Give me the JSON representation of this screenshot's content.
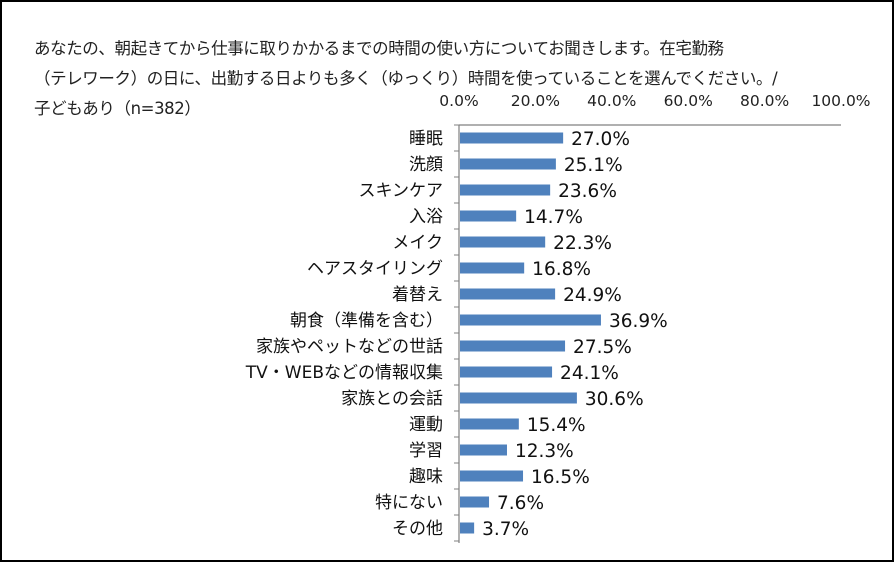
{
  "chart_data": {
    "type": "bar",
    "orientation": "horizontal",
    "title_lines": [
      "あなたの、朝起きてから仕事に取りかかるまでの時間の使い方についてお聞きします。在宅勤務",
      "（テレワーク）の日に、出勤する日よりも多く（ゆっくり）時間を使っていることを選んでください。/",
      "子どもあり（n=382）"
    ],
    "xlim": [
      0,
      100
    ],
    "ticks": [
      0,
      20,
      40,
      60,
      80,
      100
    ],
    "tick_labels": [
      "0.0%",
      "20.0%",
      "40.0%",
      "60.0%",
      "80.0%",
      "100.0%"
    ],
    "tick_position": "top",
    "categories": [
      "睡眠",
      "洗顔",
      "スキンケア",
      "入浴",
      "メイク",
      "ヘアスタイリング",
      "着替え",
      "朝食（準備を含む）",
      "家族やペットなどの世話",
      "TV・WEBなどの情報収集",
      "家族との会話",
      "運動",
      "学習",
      "趣味",
      "特にない",
      "その他"
    ],
    "values": [
      27.0,
      25.1,
      23.6,
      14.7,
      22.3,
      16.8,
      24.9,
      36.9,
      27.5,
      24.1,
      30.6,
      15.4,
      12.3,
      16.5,
      7.6,
      3.7
    ],
    "value_labels": [
      "27.0%",
      "25.1%",
      "23.6%",
      "14.7%",
      "22.3%",
      "16.8%",
      "24.9%",
      "36.9%",
      "27.5%",
      "24.1%",
      "30.6%",
      "15.4%",
      "12.3%",
      "16.5%",
      "7.6%",
      "3.7%"
    ],
    "bar_color": "#4F81BD",
    "grid": false,
    "legend": "none"
  }
}
